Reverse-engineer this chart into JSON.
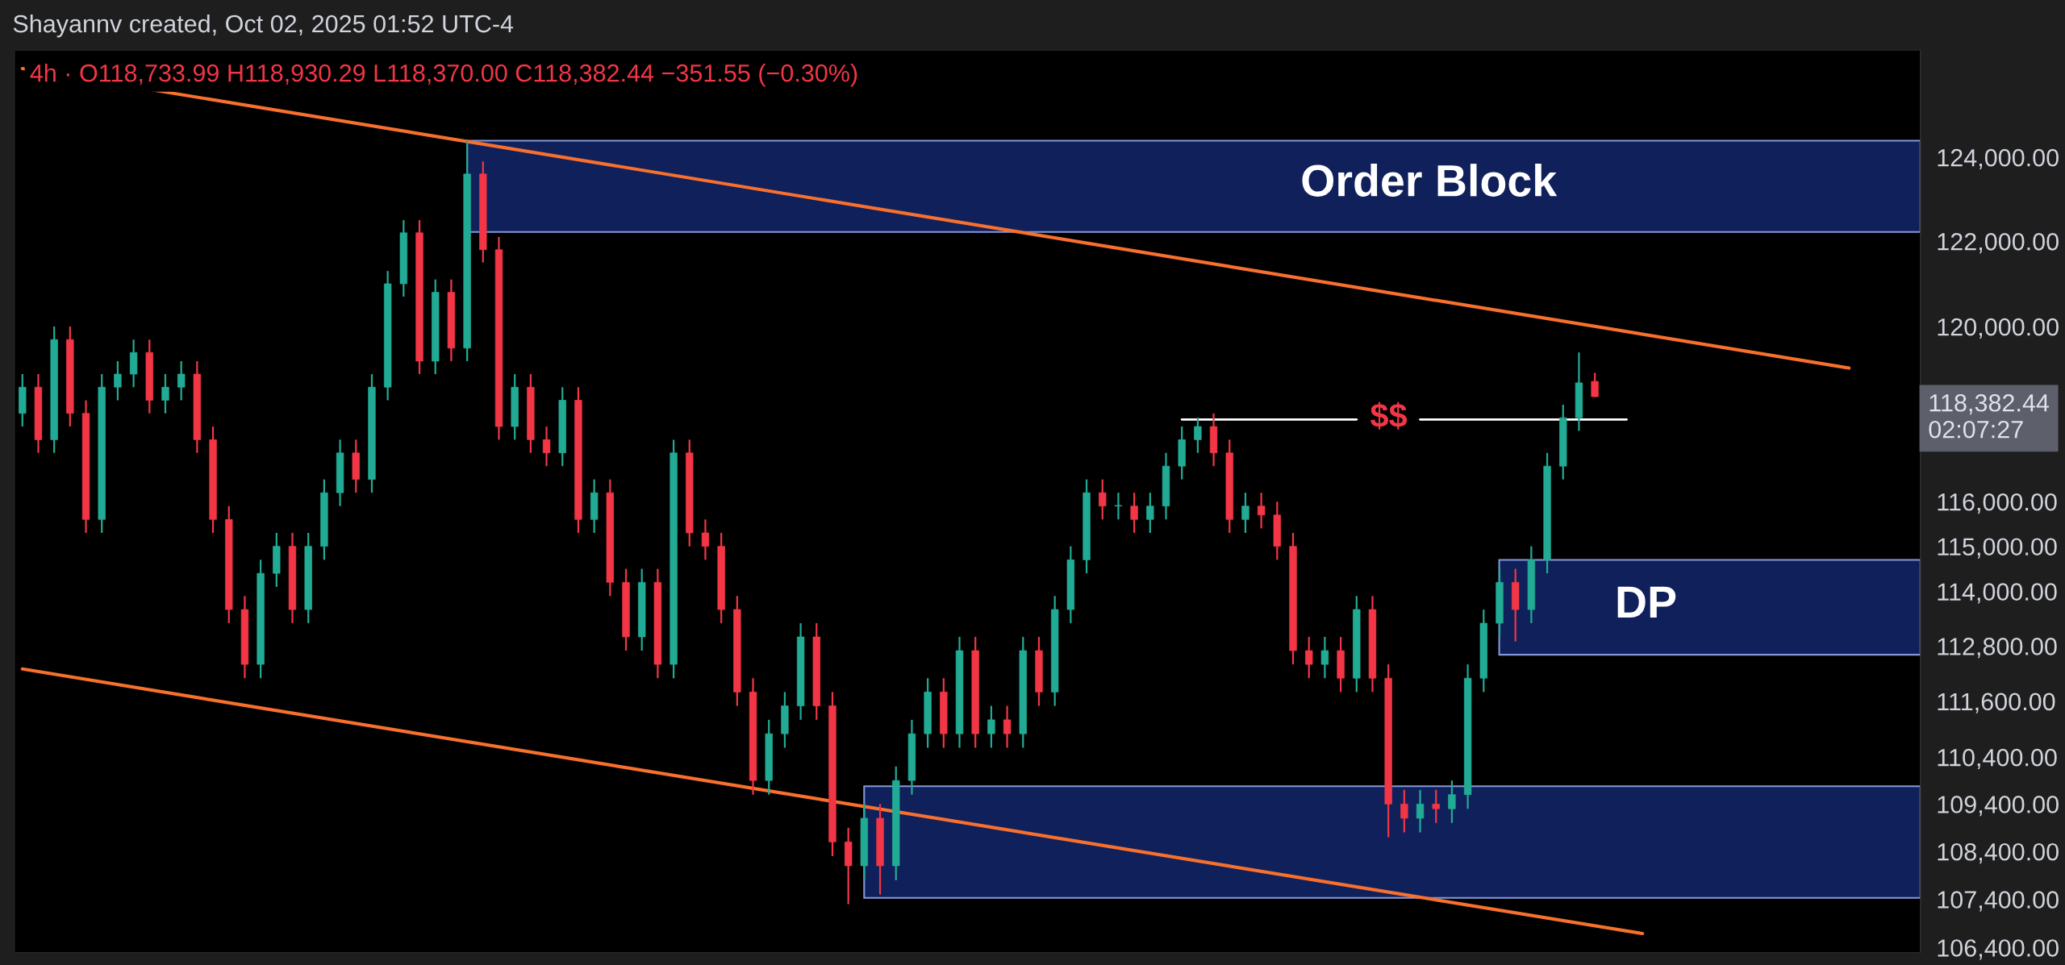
{
  "chart_data": {
    "type": "candlestick",
    "title": "Shayannv created, Oct 02, 2025 01:52 UTC-4",
    "subtitle": "4h · O118,733.99 H118,930.29 L118,370.00 C118,382.44 −351.55 (−0.30%)",
    "categories": [
      null,
      null,
      null,
      null,
      null,
      null,
      null,
      null,
      null,
      null,
      null,
      null,
      null,
      null,
      null,
      null,
      null,
      null,
      null,
      null,
      null,
      null,
      null,
      null,
      null,
      null,
      null,
      null,
      null,
      null,
      null,
      null,
      null,
      null,
      null,
      null,
      null,
      null,
      null,
      null,
      null,
      null,
      null,
      null,
      null,
      null,
      null,
      null,
      null,
      null,
      null,
      null,
      null,
      null,
      null,
      null,
      null,
      null,
      null,
      null,
      null,
      null,
      null,
      null,
      null,
      null,
      null,
      null,
      null,
      null,
      null,
      null,
      null,
      null,
      null,
      null,
      null,
      null,
      null,
      null,
      null,
      null,
      null,
      null,
      null,
      null,
      null,
      null,
      null,
      null,
      null,
      null,
      null,
      null,
      null,
      null,
      null,
      null,
      null,
      null,
      null,
      null,
      null,
      null,
      null,
      null,
      null,
      null,
      null,
      null,
      null,
      null,
      null,
      null,
      null,
      null,
      null,
      null,
      null,
      null
    ],
    "ohlc": [
      [
        118000,
        118900,
        117700,
        118600
      ],
      [
        118600,
        118900,
        117100,
        117400
      ],
      [
        117400,
        120000,
        117100,
        119700
      ],
      [
        119700,
        120000,
        117700,
        118000
      ],
      [
        118000,
        118300,
        115300,
        115600
      ],
      [
        115600,
        118900,
        115300,
        118600
      ],
      [
        118600,
        119200,
        118300,
        118900
      ],
      [
        118900,
        119700,
        118600,
        119400
      ],
      [
        119400,
        119700,
        118000,
        118300
      ],
      [
        118300,
        118900,
        118000,
        118600
      ],
      [
        118600,
        119200,
        118300,
        118900
      ],
      [
        118900,
        119200,
        117100,
        117400
      ],
      [
        117400,
        117700,
        115300,
        115600
      ],
      [
        115600,
        115900,
        113300,
        113600
      ],
      [
        113600,
        113900,
        112100,
        112400
      ],
      [
        112400,
        114700,
        112100,
        114400
      ],
      [
        114400,
        115300,
        114100,
        115000
      ],
      [
        115000,
        115300,
        113300,
        113600
      ],
      [
        113600,
        115300,
        113300,
        115000
      ],
      [
        115000,
        116500,
        114700,
        116200
      ],
      [
        116200,
        117400,
        115900,
        117100
      ],
      [
        117100,
        117400,
        116200,
        116500
      ],
      [
        116500,
        118900,
        116200,
        118600
      ],
      [
        118600,
        121300,
        118300,
        121000
      ],
      [
        121000,
        122500,
        120700,
        122200
      ],
      [
        122200,
        122500,
        118900,
        119200
      ],
      [
        119200,
        121100,
        118900,
        120800
      ],
      [
        120800,
        121100,
        119200,
        119500
      ],
      [
        119500,
        124400,
        119200,
        123600
      ],
      [
        123600,
        123900,
        121500,
        121800
      ],
      [
        121800,
        122100,
        117400,
        117700
      ],
      [
        117700,
        118900,
        117400,
        118600
      ],
      [
        118600,
        118900,
        117100,
        117400
      ],
      [
        117400,
        117700,
        116800,
        117100
      ],
      [
        117100,
        118600,
        116800,
        118300
      ],
      [
        118300,
        118600,
        115300,
        115600
      ],
      [
        115600,
        116500,
        115300,
        116200
      ],
      [
        116200,
        116500,
        113900,
        114200
      ],
      [
        114200,
        114500,
        112700,
        113000
      ],
      [
        113000,
        114500,
        112700,
        114200
      ],
      [
        114200,
        114500,
        112100,
        112400
      ],
      [
        112400,
        117400,
        112100,
        117100
      ],
      [
        117100,
        117400,
        115000,
        115300
      ],
      [
        115300,
        115600,
        114700,
        115000
      ],
      [
        115000,
        115300,
        113300,
        113600
      ],
      [
        113600,
        113900,
        111500,
        111800
      ],
      [
        111800,
        112100,
        109600,
        109900
      ],
      [
        109900,
        111200,
        109600,
        110900
      ],
      [
        110900,
        111800,
        110600,
        111500
      ],
      [
        111500,
        113300,
        111200,
        113000
      ],
      [
        113000,
        113300,
        111200,
        111500
      ],
      [
        111500,
        111800,
        108300,
        108600
      ],
      [
        108600,
        108900,
        107300,
        108100
      ],
      [
        108100,
        109400,
        107800,
        109100
      ],
      [
        109100,
        109400,
        107500,
        108100
      ],
      [
        108100,
        110200,
        107800,
        109900
      ],
      [
        109900,
        111200,
        109600,
        110900
      ],
      [
        110900,
        112100,
        110600,
        111800
      ],
      [
        111800,
        112100,
        110600,
        110900
      ],
      [
        110900,
        113000,
        110600,
        112700
      ],
      [
        112700,
        113000,
        110600,
        110900
      ],
      [
        110900,
        111500,
        110600,
        111200
      ],
      [
        111200,
        111500,
        110600,
        110900
      ],
      [
        110900,
        113000,
        110600,
        112700
      ],
      [
        112700,
        113000,
        111500,
        111800
      ],
      [
        111800,
        113900,
        111500,
        113600
      ],
      [
        113600,
        115000,
        113300,
        114700
      ],
      [
        114700,
        116500,
        114400,
        116200
      ],
      [
        116200,
        116500,
        115600,
        115900
      ],
      [
        115900,
        116200,
        115600,
        115900
      ],
      [
        115900,
        116200,
        115300,
        115600
      ],
      [
        115600,
        116200,
        115300,
        115900
      ],
      [
        115900,
        117100,
        115600,
        116800
      ],
      [
        116800,
        117700,
        116500,
        117400
      ],
      [
        117400,
        117900,
        117100,
        117700
      ],
      [
        117700,
        118000,
        116800,
        117100
      ],
      [
        117100,
        117400,
        115300,
        115600
      ],
      [
        115600,
        116200,
        115300,
        115900
      ],
      [
        115900,
        116200,
        115400,
        115700
      ],
      [
        115700,
        116000,
        114700,
        115000
      ],
      [
        115000,
        115300,
        112400,
        112700
      ],
      [
        112700,
        113000,
        112100,
        112400
      ],
      [
        112400,
        113000,
        112100,
        112700
      ],
      [
        112700,
        113000,
        111800,
        112100
      ],
      [
        112100,
        113900,
        111800,
        113600
      ],
      [
        113600,
        113900,
        111800,
        112100
      ],
      [
        112100,
        112400,
        108700,
        109400
      ],
      [
        109400,
        109700,
        108800,
        109100
      ],
      [
        109100,
        109700,
        108800,
        109400
      ],
      [
        109400,
        109700,
        109000,
        109300
      ],
      [
        109300,
        109900,
        109000,
        109600
      ],
      [
        109600,
        112400,
        109300,
        112100
      ],
      [
        112100,
        113600,
        111800,
        113300
      ],
      [
        113300,
        114500,
        113000,
        114200
      ],
      [
        114200,
        114500,
        112900,
        113600
      ],
      [
        113600,
        115000,
        113300,
        114700
      ],
      [
        114700,
        117100,
        114400,
        116800
      ],
      [
        116800,
        118200,
        116500,
        117900
      ],
      [
        117900,
        119400,
        117600,
        118700
      ],
      [
        118733.99,
        118930.29,
        118370,
        118382.44
      ],
      null,
      null,
      null,
      null,
      null,
      null,
      null,
      null,
      null,
      null,
      null,
      null,
      null,
      null,
      null,
      null,
      null,
      null,
      null,
      null
    ],
    "colors": [
      "#22ab94",
      "#f23645",
      "#22ab94",
      "#f23645",
      "#f23645",
      "#22ab94",
      "#22ab94",
      "#22ab94",
      "#f23645",
      "#22ab94",
      "#22ab94",
      "#f23645",
      "#f23645",
      "#f23645",
      "#f23645",
      "#22ab94",
      "#22ab94",
      "#f23645",
      "#22ab94",
      "#22ab94",
      "#22ab94",
      "#f23645",
      "#22ab94",
      "#22ab94",
      "#22ab94",
      "#f23645",
      "#22ab94",
      "#f23645",
      "#22ab94",
      "#f23645",
      "#f23645",
      "#22ab94",
      "#f23645",
      "#f23645",
      "#22ab94",
      "#f23645",
      "#22ab94",
      "#f23645",
      "#f23645",
      "#22ab94",
      "#f23645",
      "#22ab94",
      "#f23645",
      "#f23645",
      "#f23645",
      "#f23645",
      "#f23645",
      "#22ab94",
      "#22ab94",
      "#22ab94",
      "#f23645",
      "#f23645",
      "#f23645",
      "#22ab94",
      "#f23645",
      "#22ab94",
      "#22ab94",
      "#22ab94",
      "#f23645",
      "#22ab94",
      "#f23645",
      "#22ab94",
      "#f23645",
      "#22ab94",
      "#f23645",
      "#22ab94",
      "#22ab94",
      "#22ab94",
      "#f23645",
      "#22ab94",
      "#f23645",
      "#22ab94",
      "#22ab94",
      "#22ab94",
      "#22ab94",
      "#f23645",
      "#f23645",
      "#22ab94",
      "#f23645",
      "#f23645",
      "#f23645",
      "#f23645",
      "#22ab94",
      "#f23645",
      "#22ab94",
      "#f23645",
      "#f23645",
      "#f23645",
      "#22ab94",
      "#f23645",
      "#22ab94",
      "#22ab94",
      "#22ab94",
      "#22ab94",
      "#f23645",
      "#22ab94",
      "#22ab94",
      "#22ab94",
      "#22ab94",
      "#f23645",
      null,
      null,
      null,
      null,
      null,
      null,
      null,
      null,
      null,
      null,
      null,
      null,
      null,
      null,
      null,
      null,
      null,
      null,
      null,
      null
    ],
    "series": [
      {
        "type": "line",
        "color": "#f7702e",
        "values": [
          126150,
          null,
          null,
          null,
          null,
          null,
          null,
          null,
          null,
          null,
          null,
          null,
          null,
          null,
          null,
          null,
          null,
          null,
          null,
          null,
          null,
          null,
          null,
          null,
          null,
          null,
          null,
          null,
          null,
          null,
          null,
          null,
          null,
          null,
          null,
          null,
          null,
          null,
          null,
          null,
          null,
          null,
          null,
          null,
          null,
          null,
          null,
          null,
          null,
          null,
          null,
          null,
          null,
          null,
          null,
          null,
          null,
          null,
          null,
          null,
          null,
          null,
          null,
          null,
          null,
          null,
          null,
          null,
          null,
          null,
          null,
          null,
          null,
          null,
          null,
          null,
          null,
          null,
          null,
          null,
          null,
          null,
          null,
          null,
          null,
          null,
          null,
          null,
          null,
          null,
          null,
          null,
          null,
          null,
          null,
          null,
          null,
          null,
          null,
          null,
          null,
          null,
          null,
          null,
          null,
          null,
          null,
          null,
          null,
          null,
          null,
          null,
          null,
          null,
          null,
          119040,
          null,
          null,
          null,
          null
        ]
      },
      {
        "type": "line",
        "color": "#f7702e",
        "values": [
          112300,
          null,
          null,
          null,
          null,
          null,
          null,
          null,
          null,
          null,
          null,
          null,
          null,
          null,
          null,
          null,
          null,
          null,
          null,
          null,
          null,
          null,
          null,
          null,
          null,
          null,
          null,
          null,
          null,
          null,
          null,
          null,
          null,
          null,
          null,
          null,
          null,
          null,
          null,
          null,
          null,
          null,
          null,
          null,
          null,
          null,
          null,
          null,
          null,
          null,
          null,
          null,
          null,
          null,
          null,
          null,
          null,
          null,
          null,
          null,
          null,
          null,
          null,
          null,
          null,
          null,
          null,
          null,
          null,
          null,
          null,
          null,
          null,
          null,
          null,
          null,
          null,
          null,
          null,
          null,
          null,
          null,
          null,
          null,
          null,
          null,
          null,
          null,
          null,
          null,
          null,
          null,
          null,
          null,
          null,
          null,
          null,
          null,
          null,
          null,
          null,
          null,
          106690,
          null,
          null,
          null,
          null,
          null,
          null,
          null,
          null,
          null,
          null,
          null,
          null,
          null,
          null,
          null,
          null,
          null
        ]
      },
      {
        "type": "line",
        "color": "#ffffff",
        "values": [
          null,
          null,
          null,
          null,
          null,
          null,
          null,
          null,
          null,
          null,
          null,
          null,
          null,
          null,
          null,
          null,
          null,
          null,
          null,
          null,
          null,
          null,
          null,
          null,
          null,
          null,
          null,
          null,
          null,
          null,
          null,
          null,
          null,
          null,
          null,
          null,
          null,
          null,
          null,
          null,
          null,
          null,
          null,
          null,
          null,
          null,
          null,
          null,
          null,
          null,
          null,
          null,
          null,
          null,
          null,
          null,
          null,
          null,
          null,
          null,
          null,
          null,
          null,
          null,
          null,
          null,
          null,
          null,
          null,
          null,
          null,
          null,
          null,
          117860,
          null,
          null,
          null,
          null,
          null,
          null,
          null,
          null,
          null,
          null,
          117860,
          null,
          null,
          null,
          null,
          null,
          null,
          null,
          null,
          null,
          null,
          null,
          null,
          null,
          null,
          null,
          null,
          null,
          null,
          null,
          null,
          null,
          null,
          null,
          null,
          null,
          null,
          null,
          null,
          null,
          null,
          null,
          null,
          null,
          null,
          null
        ]
      },
      {
        "type": "line",
        "color": "#ffffff",
        "values": [
          null,
          null,
          null,
          null,
          null,
          null,
          null,
          null,
          null,
          null,
          null,
          null,
          null,
          null,
          null,
          null,
          null,
          null,
          null,
          null,
          null,
          null,
          null,
          null,
          null,
          null,
          null,
          null,
          null,
          null,
          null,
          null,
          null,
          null,
          null,
          null,
          null,
          null,
          null,
          null,
          null,
          null,
          null,
          null,
          null,
          null,
          null,
          null,
          null,
          null,
          null,
          null,
          null,
          null,
          null,
          null,
          null,
          null,
          null,
          null,
          null,
          null,
          null,
          null,
          null,
          null,
          null,
          null,
          null,
          null,
          null,
          null,
          null,
          null,
          null,
          null,
          null,
          null,
          null,
          null,
          null,
          null,
          null,
          null,
          null,
          null,
          null,
          null,
          117860,
          null,
          null,
          null,
          null,
          null,
          null,
          null,
          null,
          null,
          null,
          null,
          null,
          117860,
          null,
          null,
          null,
          null,
          null,
          null,
          null,
          null,
          null,
          null,
          null,
          null,
          null,
          null,
          null,
          null,
          null,
          null
        ]
      }
    ],
    "annotations": [
      "Order Block",
      "DP",
      "$$",
      "118,382.44\n02:07:27"
    ],
    "log": true,
    "ylim": [
      106300,
      126600
    ],
    "yticks": [
      {
        "value": 106400,
        "label": "106,400.00"
      },
      {
        "value": 107400,
        "label": "107,400.00"
      },
      {
        "value": 108400,
        "label": "108,400.00"
      },
      {
        "value": 109400,
        "label": "109,400.00"
      },
      {
        "value": 110400,
        "label": "110,400.00"
      },
      {
        "value": 111600,
        "label": "111,600.00"
      },
      {
        "value": 112800,
        "label": "112,800.00"
      },
      {
        "value": 114000,
        "label": "114,000.00"
      },
      {
        "value": 115000,
        "label": "115,000.00"
      },
      {
        "value": 116000,
        "label": "116,000.00"
      },
      {
        "value": 120000,
        "label": "120,000.00"
      },
      {
        "value": 122000,
        "label": "122,000.00"
      },
      {
        "value": 124000,
        "label": "124,000.00"
      }
    ],
    "tick_labels": "y",
    "legend": false,
    "grid": false
  }
}
